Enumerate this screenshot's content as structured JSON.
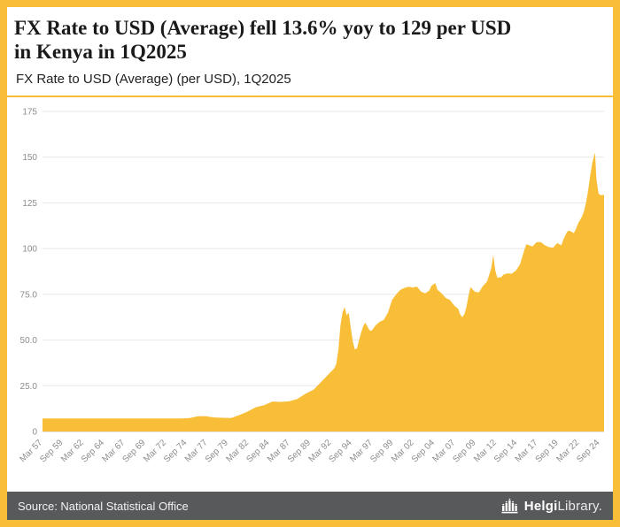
{
  "page": {
    "accent": "#F9BE37",
    "footer_bg": "#58595B",
    "background": "#FFFFFF"
  },
  "header": {
    "title_line1": "FX Rate to USD (Average) fell 13.6% yoy to 129 per USD",
    "title_line2": "in Kenya in 1Q2025",
    "subtitle": "FX Rate to USD (Average) (per USD), 1Q2025"
  },
  "footer": {
    "source": "Source: National Statistical Office",
    "brand_bold": "Helgi",
    "brand_light": "Library."
  },
  "chart_data": {
    "type": "area",
    "title": "FX Rate to USD (Average) fell 13.6% yoy to 129 per USD in Kenya in 1Q2025",
    "subtitle": "FX Rate to USD (Average) (per USD), 1Q2025",
    "series_name": "FX Rate to USD (Average) (per USD)",
    "color": "#F9BE37",
    "grid": "horizontal-only",
    "legend": "none",
    "xlabel": "",
    "ylabel": "",
    "xlim": [
      1957.17,
      2025.17
    ],
    "ylim": [
      0,
      175
    ],
    "y_ticks": [
      {
        "v": 0,
        "label": "0"
      },
      {
        "v": 25,
        "label": "25.0"
      },
      {
        "v": 50,
        "label": "50.0"
      },
      {
        "v": 75,
        "label": "75.0"
      },
      {
        "v": 100,
        "label": "100"
      },
      {
        "v": 125,
        "label": "125"
      },
      {
        "v": 150,
        "label": "150"
      },
      {
        "v": 175,
        "label": "175"
      }
    ],
    "x_tick_labels": [
      "Mar 57",
      "Sep 59",
      "Mar 62",
      "Sep 64",
      "Mar 67",
      "Sep 69",
      "Mar 72",
      "Sep 74",
      "Mar 77",
      "Sep 79",
      "Mar 82",
      "Sep 84",
      "Mar 87",
      "Sep 89",
      "Mar 92",
      "Sep 94",
      "Mar 97",
      "Sep 99",
      "Mar 02",
      "Sep 04",
      "Mar 07",
      "Sep 09",
      "Mar 12",
      "Sep 14",
      "Mar 17",
      "Sep 19",
      "Mar 22",
      "Sep 24"
    ],
    "points": [
      [
        1957.17,
        7.1
      ],
      [
        1960,
        7.1
      ],
      [
        1964,
        7.1
      ],
      [
        1968,
        7.1
      ],
      [
        1971,
        7.1
      ],
      [
        1974,
        7.1
      ],
      [
        1975,
        7.4
      ],
      [
        1975.5,
        7.9
      ],
      [
        1976,
        8.3
      ],
      [
        1976.5,
        8.4
      ],
      [
        1977,
        8.3
      ],
      [
        1977.5,
        8.0
      ],
      [
        1978,
        7.7
      ],
      [
        1979,
        7.5
      ],
      [
        1980,
        7.4
      ],
      [
        1981,
        9.0
      ],
      [
        1982,
        10.9
      ],
      [
        1983,
        13.3
      ],
      [
        1984,
        14.4
      ],
      [
        1985,
        16.4
      ],
      [
        1986,
        16.2
      ],
      [
        1987,
        16.5
      ],
      [
        1988,
        17.7
      ],
      [
        1989,
        20.6
      ],
      [
        1990,
        22.9
      ],
      [
        1991,
        27.5
      ],
      [
        1992,
        32.2
      ],
      [
        1992.5,
        34.5
      ],
      [
        1992.75,
        37
      ],
      [
        1993,
        45
      ],
      [
        1993.25,
        58
      ],
      [
        1993.5,
        65
      ],
      [
        1993.75,
        68
      ],
      [
        1994,
        63.5
      ],
      [
        1994.25,
        65
      ],
      [
        1994.5,
        57
      ],
      [
        1994.75,
        49
      ],
      [
        1995,
        44.8
      ],
      [
        1995.25,
        45.5
      ],
      [
        1995.5,
        50
      ],
      [
        1995.75,
        54
      ],
      [
        1996,
        57.5
      ],
      [
        1996.25,
        59.5
      ],
      [
        1996.5,
        57.5
      ],
      [
        1996.75,
        55.5
      ],
      [
        1997,
        55
      ],
      [
        1997.5,
        58
      ],
      [
        1998,
        60
      ],
      [
        1998.5,
        61
      ],
      [
        1999,
        65
      ],
      [
        1999.5,
        72
      ],
      [
        2000,
        75
      ],
      [
        2000.5,
        77.5
      ],
      [
        2001,
        78.5
      ],
      [
        2001.5,
        79.2
      ],
      [
        2002,
        78.7
      ],
      [
        2002.5,
        79.3
      ],
      [
        2003,
        76.5
      ],
      [
        2003.5,
        75.5
      ],
      [
        2004,
        77
      ],
      [
        2004.25,
        79.5
      ],
      [
        2004.5,
        80.5
      ],
      [
        2004.75,
        81
      ],
      [
        2005,
        77.5
      ],
      [
        2005.5,
        75.5
      ],
      [
        2006,
        73
      ],
      [
        2006.5,
        72
      ],
      [
        2007,
        69
      ],
      [
        2007.5,
        67
      ],
      [
        2007.75,
        64
      ],
      [
        2008,
        62.5
      ],
      [
        2008.25,
        64
      ],
      [
        2008.5,
        68
      ],
      [
        2008.75,
        74
      ],
      [
        2009,
        79
      ],
      [
        2009.5,
        76.5
      ],
      [
        2010,
        76
      ],
      [
        2010.5,
        79.5
      ],
      [
        2011,
        82
      ],
      [
        2011.5,
        89
      ],
      [
        2011.75,
        96.5
      ],
      [
        2012,
        88
      ],
      [
        2012.25,
        84
      ],
      [
        2012.75,
        84.5
      ],
      [
        2013,
        85.8
      ],
      [
        2013.5,
        86.5
      ],
      [
        2014,
        86.3
      ],
      [
        2014.5,
        88
      ],
      [
        2015,
        91.5
      ],
      [
        2015.5,
        99
      ],
      [
        2015.75,
        102.3
      ],
      [
        2016,
        102
      ],
      [
        2016.5,
        101.2
      ],
      [
        2017,
        103.5
      ],
      [
        2017.5,
        103.6
      ],
      [
        2018,
        101.8
      ],
      [
        2018.5,
        100.8
      ],
      [
        2019,
        100.5
      ],
      [
        2019.5,
        103
      ],
      [
        2020,
        101.8
      ],
      [
        2020.25,
        105
      ],
      [
        2020.5,
        107.5
      ],
      [
        2020.75,
        109.5
      ],
      [
        2021,
        109.8
      ],
      [
        2021.5,
        108.5
      ],
      [
        2021.75,
        110.5
      ],
      [
        2022,
        113.5
      ],
      [
        2022.5,
        117.5
      ],
      [
        2022.75,
        120.5
      ],
      [
        2023,
        125.5
      ],
      [
        2023.25,
        132
      ],
      [
        2023.5,
        140
      ],
      [
        2023.75,
        147
      ],
      [
        2024.08,
        152.5
      ],
      [
        2024.25,
        138
      ],
      [
        2024.5,
        130
      ],
      [
        2024.75,
        129.2
      ],
      [
        2025,
        129.3
      ],
      [
        2025.17,
        129.4
      ]
    ]
  }
}
